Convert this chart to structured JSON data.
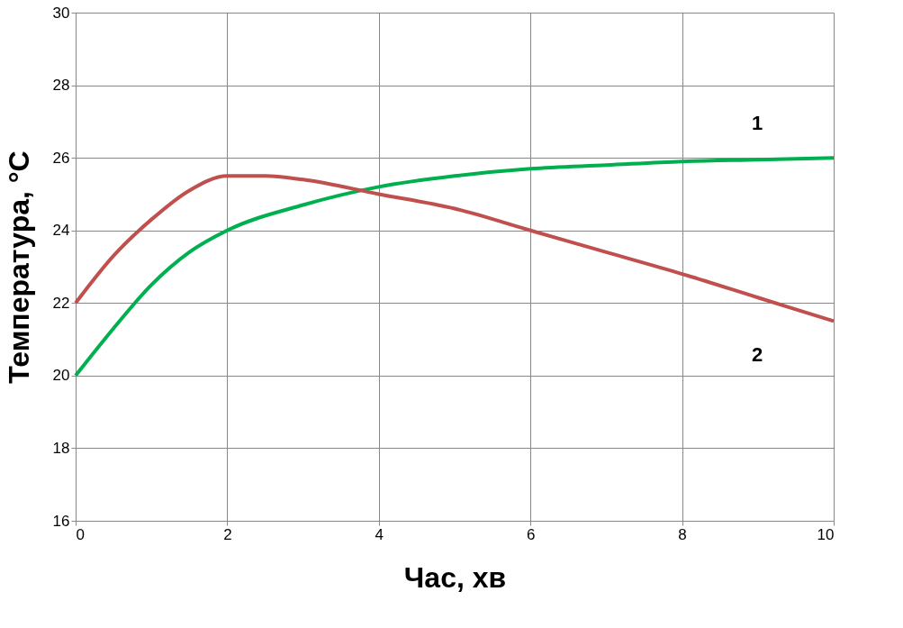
{
  "chart_data": {
    "type": "line",
    "xlabel": "Час, хв",
    "ylabel": "Температура, °C",
    "xlim": [
      0,
      10
    ],
    "ylim": [
      16,
      30
    ],
    "xticks": [
      0,
      2,
      4,
      6,
      8,
      10
    ],
    "yticks": [
      16,
      18,
      20,
      22,
      24,
      26,
      28,
      30
    ],
    "grid": true,
    "legend": false,
    "marker": "none",
    "line_style": "solid",
    "series": [
      {
        "name": "1",
        "color": "#00b050",
        "x": [
          0,
          0.5,
          1,
          1.5,
          2,
          3,
          4,
          5,
          6,
          7,
          8,
          9,
          10
        ],
        "values": [
          20,
          21.3,
          22.5,
          23.4,
          24,
          24.7,
          25.2,
          25.5,
          25.7,
          25.8,
          25.9,
          25.95,
          26
        ]
      },
      {
        "name": "2",
        "color": "#c0504d",
        "x": [
          0,
          0.5,
          1,
          1.5,
          2,
          2.5,
          3,
          4,
          5,
          6,
          7,
          8,
          9,
          10
        ],
        "values": [
          22,
          23.3,
          24.3,
          25.1,
          25.5,
          25.5,
          25.4,
          25,
          24.6,
          24,
          23.4,
          22.8,
          22.15,
          21.5
        ]
      }
    ]
  }
}
